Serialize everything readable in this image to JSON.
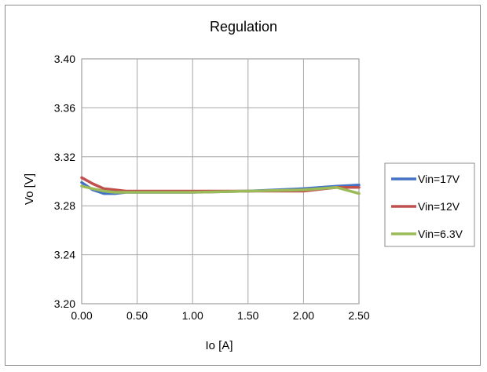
{
  "chart_data": {
    "type": "line",
    "title": "Regulation",
    "xlabel": "Io [A]",
    "ylabel": "Vo [V]",
    "xlim": [
      0,
      2.5
    ],
    "ylim": [
      3.2,
      3.4
    ],
    "xticks": [
      "0.00",
      "0.50",
      "1.00",
      "1.50",
      "2.00",
      "2.50"
    ],
    "yticks": [
      "3.20",
      "3.24",
      "3.28",
      "3.32",
      "3.36",
      "3.40"
    ],
    "grid": true,
    "legend_position": "right",
    "series": [
      {
        "name": "Vin=17V",
        "color": "#4472c4",
        "x": [
          0,
          0.1,
          0.2,
          0.3,
          0.4,
          0.5,
          1.0,
          1.5,
          2.0,
          2.3,
          2.5
        ],
        "y": [
          3.299,
          3.293,
          3.29,
          3.29,
          3.291,
          3.291,
          3.291,
          3.292,
          3.294,
          3.296,
          3.297
        ]
      },
      {
        "name": "Vin=12V",
        "color": "#c0504d",
        "x": [
          0,
          0.1,
          0.2,
          0.3,
          0.4,
          0.5,
          1.0,
          1.5,
          2.0,
          2.3,
          2.5
        ],
        "y": [
          3.303,
          3.298,
          3.294,
          3.293,
          3.292,
          3.292,
          3.292,
          3.292,
          3.292,
          3.295,
          3.295
        ]
      },
      {
        "name": "Vin=6.3V",
        "color": "#9bbb59",
        "x": [
          0,
          0.1,
          0.2,
          0.3,
          0.4,
          0.5,
          1.0,
          1.5,
          2.0,
          2.3,
          2.5
        ],
        "y": [
          3.296,
          3.294,
          3.292,
          3.291,
          3.291,
          3.291,
          3.291,
          3.292,
          3.293,
          3.295,
          3.29
        ]
      }
    ]
  }
}
